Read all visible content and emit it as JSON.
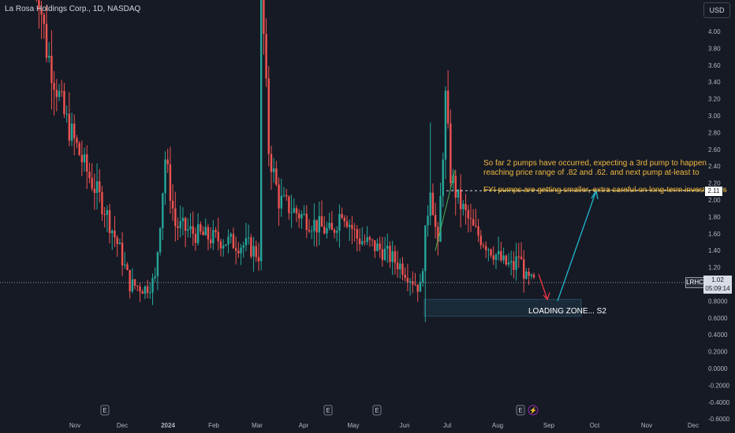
{
  "header": {
    "title": "La Rosa Holdings Corp., 1D, NASDAQ"
  },
  "toolbar": {
    "currency_label": "USD"
  },
  "colors": {
    "background": "#161a25",
    "up": "#26a69a",
    "down": "#ef5350",
    "note": "#f0b840",
    "arrow_up": "#22b8d0",
    "arrow_down": "#f23645",
    "zone": "#2c5d73"
  },
  "price": {
    "symbol": "LRHC",
    "last": "1.02",
    "countdown": "05:09:14",
    "marker": "2.11"
  },
  "annotations": {
    "line1": "So far 2 pumps have occurred, expecting a 3rd pump to happen",
    "line2": "reaching price range of .82 and .62. and next pump at-least to",
    "line3": "FYI pumps are getting smaller, extra careful on long-term investments",
    "zone_label": "LOADING ZONE... S2"
  },
  "chart_data": {
    "type": "candlestick",
    "y_axis": {
      "ticks": [
        "4.00",
        "3.80",
        "3.60",
        "3.40",
        "3.20",
        "3.00",
        "2.80",
        "2.60",
        "2.40",
        "2.20",
        "2.00",
        "1.80",
        "1.60",
        "1.40",
        "1.20",
        "1.00",
        "0.8000",
        "0.6000",
        "0.4000",
        "0.2000",
        "0.0000",
        "-0.2000",
        "-0.4000",
        "-0.6000"
      ],
      "range": [
        -0.6,
        4.4
      ]
    },
    "x_axis": {
      "ticks": [
        "Nov",
        "Dec",
        "2024",
        "Feb",
        "Mar",
        "Apr",
        "May",
        "Jun",
        "Jul",
        "Aug",
        "Sep",
        "Oct",
        "Nov",
        "Dec"
      ],
      "bold": [
        "2024"
      ]
    },
    "events": [
      "E",
      "E",
      "E",
      "E",
      "⚡"
    ],
    "trend_path": [
      {
        "i": 0,
        "v": 4.9
      },
      {
        "i": 5,
        "v": 3.8
      },
      {
        "i": 12,
        "v": 3.0
      },
      {
        "i": 20,
        "v": 2.4
      },
      {
        "i": 28,
        "v": 1.9
      },
      {
        "i": 34,
        "v": 1.4
      },
      {
        "i": 38,
        "v": 1.0
      },
      {
        "i": 44,
        "v": 0.95
      },
      {
        "i": 48,
        "v": 1.05
      },
      {
        "i": 52,
        "v": 2.5
      },
      {
        "i": 56,
        "v": 1.7
      },
      {
        "i": 64,
        "v": 1.6
      },
      {
        "i": 70,
        "v": 1.55
      },
      {
        "i": 78,
        "v": 1.5
      },
      {
        "i": 85,
        "v": 1.45
      },
      {
        "i": 89,
        "v": 1.35
      },
      {
        "i": 90,
        "v": 4.6
      },
      {
        "i": 93,
        "v": 2.6
      },
      {
        "i": 97,
        "v": 2.0
      },
      {
        "i": 104,
        "v": 1.85
      },
      {
        "i": 112,
        "v": 1.7
      },
      {
        "i": 118,
        "v": 1.6
      },
      {
        "i": 122,
        "v": 1.9
      },
      {
        "i": 128,
        "v": 1.55
      },
      {
        "i": 138,
        "v": 1.4
      },
      {
        "i": 146,
        "v": 1.2
      },
      {
        "i": 150,
        "v": 1.05
      },
      {
        "i": 153,
        "v": 0.95
      },
      {
        "i": 157,
        "v": 2.2
      },
      {
        "i": 160,
        "v": 1.4
      },
      {
        "i": 163,
        "v": 3.2
      },
      {
        "i": 165,
        "v": 2.3
      },
      {
        "i": 168,
        "v": 2.0
      },
      {
        "i": 174,
        "v": 1.65
      },
      {
        "i": 180,
        "v": 1.45
      },
      {
        "i": 186,
        "v": 1.25
      },
      {
        "i": 190,
        "v": 1.2
      },
      {
        "i": 192,
        "v": 1.35
      },
      {
        "i": 195,
        "v": 1.05
      },
      {
        "i": 198,
        "v": 1.02
      }
    ],
    "last_price": 1.02,
    "marker_price": 2.11,
    "loading_zone": {
      "low": 0.62,
      "high": 0.82
    },
    "projection": {
      "down_to": 0.82,
      "up_to": 2.11
    }
  }
}
